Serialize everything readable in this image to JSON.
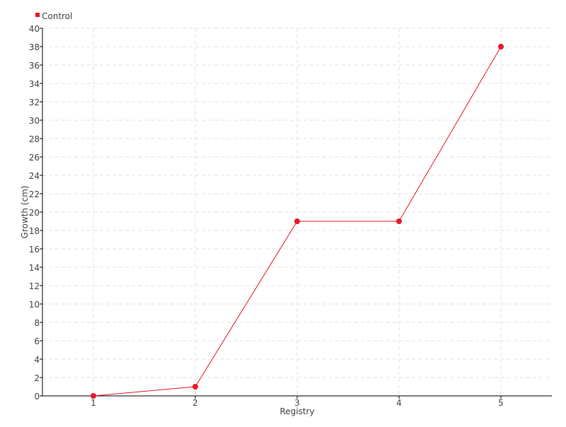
{
  "chart_data": {
    "type": "line",
    "categories": [
      "1",
      "2",
      "3",
      "4",
      "5"
    ],
    "series": [
      {
        "name": "Control",
        "values": [
          0,
          1,
          19,
          19,
          38
        ],
        "color": "#e8192c"
      }
    ],
    "xlabel": "Registry",
    "ylabel": "Growth (cm)",
    "ylim": [
      0,
      40
    ],
    "ytick_step": 2,
    "grid": true,
    "legend": "top-left"
  }
}
